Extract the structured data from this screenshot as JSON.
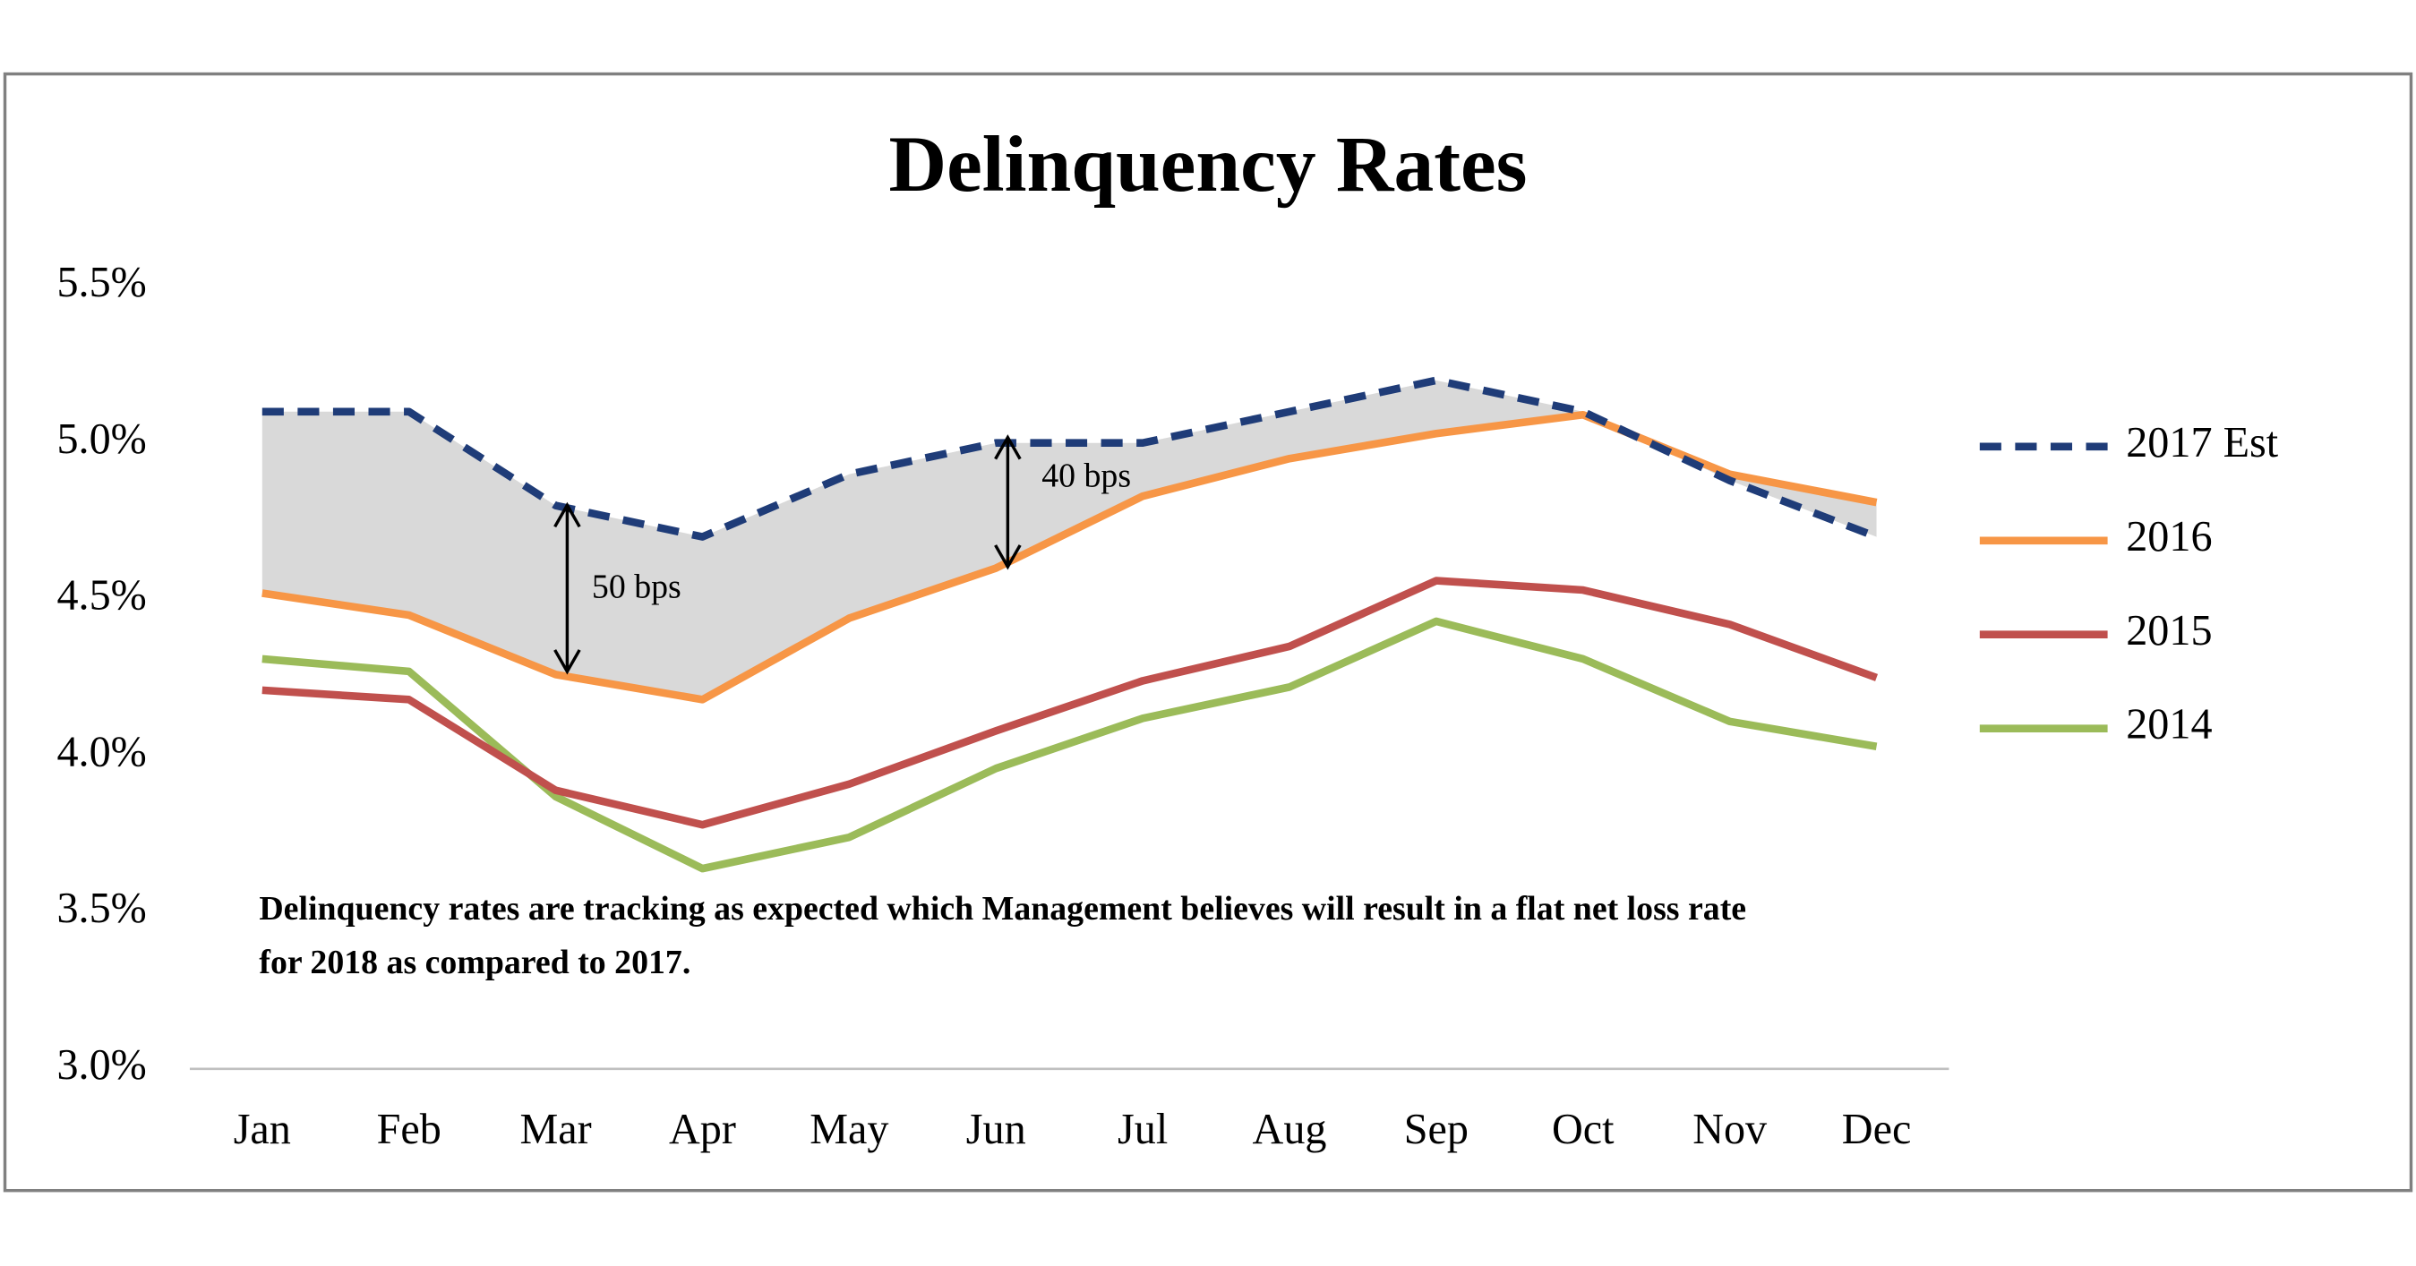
{
  "chart_data": {
    "type": "line",
    "title": "Delinquency Rates",
    "categories": [
      "Jan",
      "Feb",
      "Mar",
      "Apr",
      "May",
      "Jun",
      "Jul",
      "Aug",
      "Sep",
      "Oct",
      "Nov",
      "Dec"
    ],
    "series": [
      {
        "name": "2017 Est",
        "color": "#1f3c78",
        "values": [
          5.1,
          5.1,
          4.8,
          4.7,
          4.9,
          5.0,
          5.0,
          5.1,
          5.2,
          5.1,
          4.88,
          4.7
        ]
      },
      {
        "name": "2016",
        "color": "#f79646",
        "values": [
          4.52,
          4.45,
          4.26,
          4.18,
          4.44,
          4.6,
          4.83,
          4.95,
          5.03,
          5.09,
          4.9,
          4.81
        ]
      },
      {
        "name": "2015",
        "color": "#c0504d",
        "values": [
          4.21,
          4.18,
          3.89,
          3.78,
          3.91,
          4.08,
          4.24,
          4.35,
          4.56,
          4.53,
          4.42,
          4.25
        ]
      },
      {
        "name": "2014",
        "color": "#9bbb59",
        "values": [
          4.31,
          4.27,
          3.87,
          3.64,
          3.74,
          3.96,
          4.12,
          4.22,
          4.43,
          4.31,
          4.11,
          4.03
        ]
      }
    ],
    "ylim": [
      3.0,
      5.5
    ],
    "yticks": [
      {
        "value": 3.0,
        "label": "3.0%"
      },
      {
        "value": 3.5,
        "label": "3.5%"
      },
      {
        "value": 4.0,
        "label": "4.0%"
      },
      {
        "value": 4.5,
        "label": "4.5%"
      },
      {
        "value": 5.0,
        "label": "5.0%"
      },
      {
        "value": 5.5,
        "label": "5.5%"
      }
    ],
    "annotations": [
      "50 bps",
      "40 bps"
    ],
    "note": [
      "Delinquency  rates are tracking  as expected which  Management  believes will result  in  a  flat net loss rate",
      "for 2018 as compared  to 2017."
    ],
    "legend": "right"
  }
}
